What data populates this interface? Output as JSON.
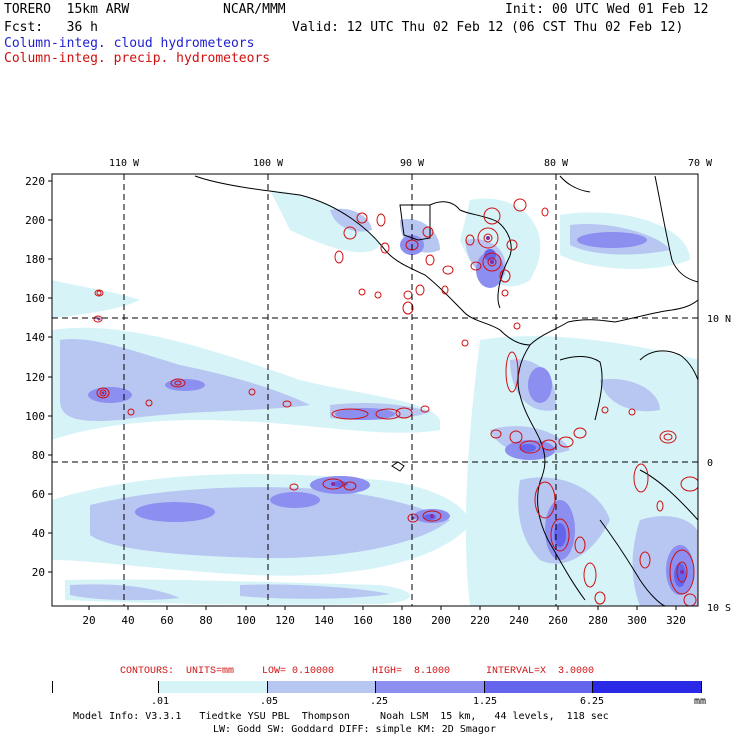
{
  "header": {
    "model": "TORERO  15km ARW",
    "org": "NCAR/MMM",
    "init": "Init: 00 UTC Wed 01 Feb 12",
    "fcst": "Fcst:   36 h",
    "valid": "Valid: 12 UTC Thu 02 Feb 12 (06 CST Thu 02 Feb 12)",
    "field_cloud": "Column-integ. cloud hydrometeors",
    "field_precip": "Column-integ. precip. hydrometeors"
  },
  "colors": {
    "cloud_contour": "#1f1fd0",
    "precip_contour": "#d01010",
    "shade_1": "#d6f4f8",
    "shade_2": "#b8c6f2",
    "shade_3": "#8c8ef0",
    "shade_4": "#6464ec",
    "shade_5": "#2a2ae6"
  },
  "map": {
    "lon_labels": [
      "110 W",
      "100 W",
      "90 W",
      "80 W",
      "70 W"
    ],
    "lat_labels": [
      "10 N",
      "0",
      "10 S"
    ],
    "y_ticks": [
      "220",
      "200",
      "180",
      "160",
      "140",
      "120",
      "100",
      "80",
      "60",
      "40",
      "20"
    ],
    "x_ticks": [
      "20",
      "40",
      "60",
      "80",
      "100",
      "120",
      "140",
      "160",
      "180",
      "200",
      "220",
      "240",
      "260",
      "280",
      "300",
      "320"
    ]
  },
  "contour_info": {
    "units": "CONTOURS:  UNITS=mm",
    "low": "LOW= 0.10000",
    "high": "HIGH=  8.1000",
    "interval": "INTERVAL=X  3.0000"
  },
  "colorbar": {
    "labels": [
      ".01",
      ".05",
      ".25",
      "1.25",
      "6.25"
    ],
    "unit": "mm"
  },
  "model_info": {
    "line1": "Model Info: V3.3.1   Tiedtke YSU PBL  Thompson     Noah LSM  15 km,   44 levels,  118 sec",
    "line2": "LW: Godd SW: Goddard DIFF: simple KM: 2D Smagor"
  }
}
